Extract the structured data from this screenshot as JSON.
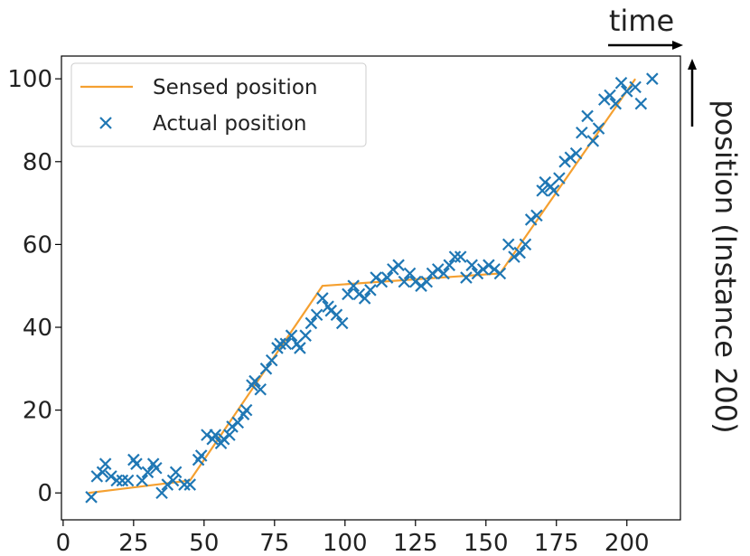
{
  "chart_data": {
    "type": "line",
    "x_label": "time",
    "y_label": "position (Instance 200)",
    "xlim": [
      -0.6,
      219
    ],
    "ylim": [
      -6.5,
      105.5
    ],
    "xticks": [
      0,
      25,
      50,
      75,
      100,
      125,
      150,
      175,
      200
    ],
    "yticks": [
      0,
      20,
      40,
      60,
      80,
      100
    ],
    "legend": "upper left",
    "series": [
      {
        "name": "Sensed position",
        "color": "#f5a030",
        "marker": "none",
        "x": [
          9,
          45,
          92,
          155,
          203
        ],
        "values": [
          0,
          3,
          50,
          53,
          100
        ]
      },
      {
        "name": "Actual position",
        "color": "#1f77b4",
        "marker": "x",
        "x": [
          10,
          12,
          14,
          15,
          17,
          19,
          21,
          23,
          25,
          26,
          28,
          30,
          32,
          33,
          35,
          37,
          39,
          40,
          43,
          45,
          48,
          49,
          51,
          53,
          54,
          56,
          57,
          59,
          60,
          62,
          64,
          65,
          67,
          68,
          70,
          72,
          74,
          76,
          77,
          79,
          81,
          83,
          84,
          86,
          88,
          90,
          92,
          94,
          95,
          97,
          99,
          101,
          103,
          105,
          107,
          109,
          111,
          113,
          115,
          117,
          119,
          121,
          123,
          125,
          127,
          129,
          131,
          133,
          135,
          137,
          139,
          141,
          143,
          145,
          147,
          149,
          151,
          153,
          155,
          158,
          160,
          162,
          164,
          166,
          168,
          170,
          171,
          173,
          174,
          176,
          178,
          180,
          182,
          184,
          186,
          188,
          190,
          192,
          194,
          196,
          198,
          200,
          203,
          205,
          209
        ],
        "values": [
          -1,
          4,
          5,
          7,
          4,
          3,
          3,
          3,
          8,
          7,
          3,
          5,
          7,
          6,
          0,
          2,
          3,
          5,
          2,
          2,
          8,
          9,
          14,
          13,
          14,
          12,
          13,
          14,
          16,
          17,
          19,
          20,
          26,
          27,
          25,
          30,
          32,
          35,
          36,
          36,
          38,
          36,
          35,
          38,
          41,
          43,
          47,
          45,
          44,
          43,
          41,
          48,
          50,
          48,
          47,
          49,
          52,
          51,
          52,
          54,
          55,
          51,
          53,
          51,
          50,
          51,
          53,
          54,
          53,
          55,
          57,
          57,
          52,
          55,
          53,
          54,
          55,
          54,
          53,
          60,
          57,
          58,
          60,
          66,
          67,
          73,
          75,
          74,
          73,
          76,
          80,
          81,
          82,
          87,
          91,
          85,
          88,
          95,
          96,
          94,
          99,
          97,
          98,
          94,
          100
        ]
      }
    ]
  }
}
